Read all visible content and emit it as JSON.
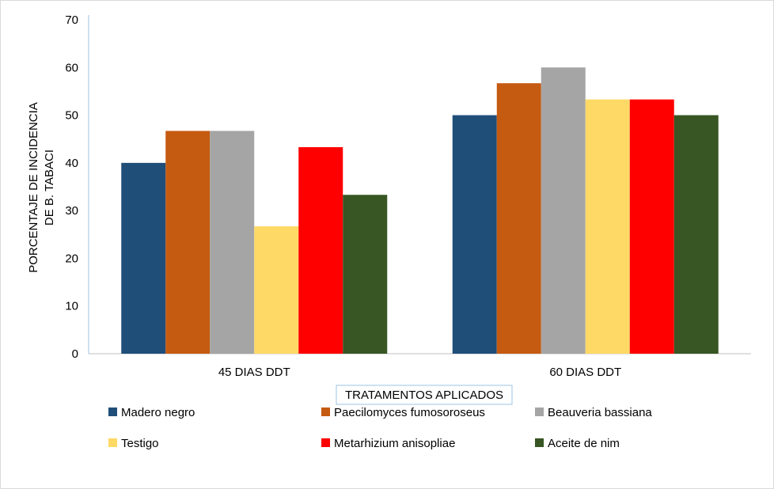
{
  "chart_data": {
    "type": "bar",
    "title": "",
    "xlabel": "TRATAMENTOS  APLICADOS",
    "ylabel": [
      "PORCENTAJE DE INCIDENCIA",
      "DE B. TABACI"
    ],
    "categories": [
      "45 DIAS DDT",
      "60 DIAS DDT"
    ],
    "ylim": [
      0,
      70
    ],
    "yticks": [
      "0",
      "10",
      "20",
      "30",
      "40",
      "50",
      "60",
      "70"
    ],
    "grid": false,
    "legend_position": "bottom",
    "series": [
      {
        "name": "Madero negro",
        "color": "#1f4e79",
        "values": [
          40,
          50
        ]
      },
      {
        "name": "Paecilomyces fumosoroseus",
        "color": "#c55a11",
        "values": [
          46.7,
          56.7
        ]
      },
      {
        "name": "Beauveria bassiana",
        "color": "#a5a5a5",
        "values": [
          46.7,
          60
        ]
      },
      {
        "name": "Testigo",
        "color": "#ffd966",
        "values": [
          26.7,
          53.3
        ]
      },
      {
        "name": "Metarhizium anisopliae",
        "color": "#ff0000",
        "values": [
          43.3,
          53.3
        ]
      },
      {
        "name": "Aceite de nim",
        "color": "#375623",
        "values": [
          33.3,
          50
        ]
      }
    ]
  }
}
